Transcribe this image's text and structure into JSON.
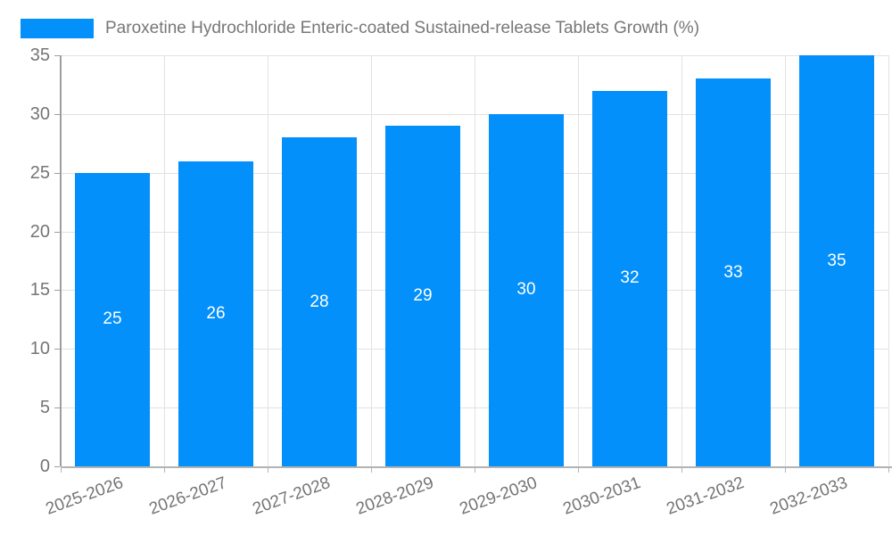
{
  "chart_data": {
    "type": "bar",
    "title": "Paroxetine Hydrochloride Enteric-coated Sustained-release Tablets Growth (%)",
    "categories": [
      "2025-2026",
      "2026-2027",
      "2027-2028",
      "2028-2029",
      "2029-2030",
      "2030-2031",
      "2031-2032",
      "2032-2033"
    ],
    "values": [
      25,
      26,
      28,
      29,
      30,
      32,
      33,
      35
    ],
    "series": [
      {
        "name": "Paroxetine Hydrochloride Enteric-coated Sustained-release Tablets Growth (%)",
        "values": [
          25,
          26,
          28,
          29,
          30,
          32,
          33,
          35
        ]
      }
    ],
    "xlabel": "",
    "ylabel": "",
    "ylim": [
      0,
      35
    ],
    "ytick_step": 5,
    "yticks": [
      0,
      5,
      10,
      15,
      20,
      25,
      30,
      35
    ],
    "grid": true,
    "legend_position": "top-left",
    "bar_labels_position": "inside-middle",
    "colors": {
      "bar": "#0490fa",
      "value_label": "#ffffff",
      "axis_text": "#757575",
      "legend_text": "#777777",
      "grid": "#e2e2e2",
      "y_axis_line": "#9e9e9e",
      "x_axis_line": "#b3b3b3"
    }
  }
}
